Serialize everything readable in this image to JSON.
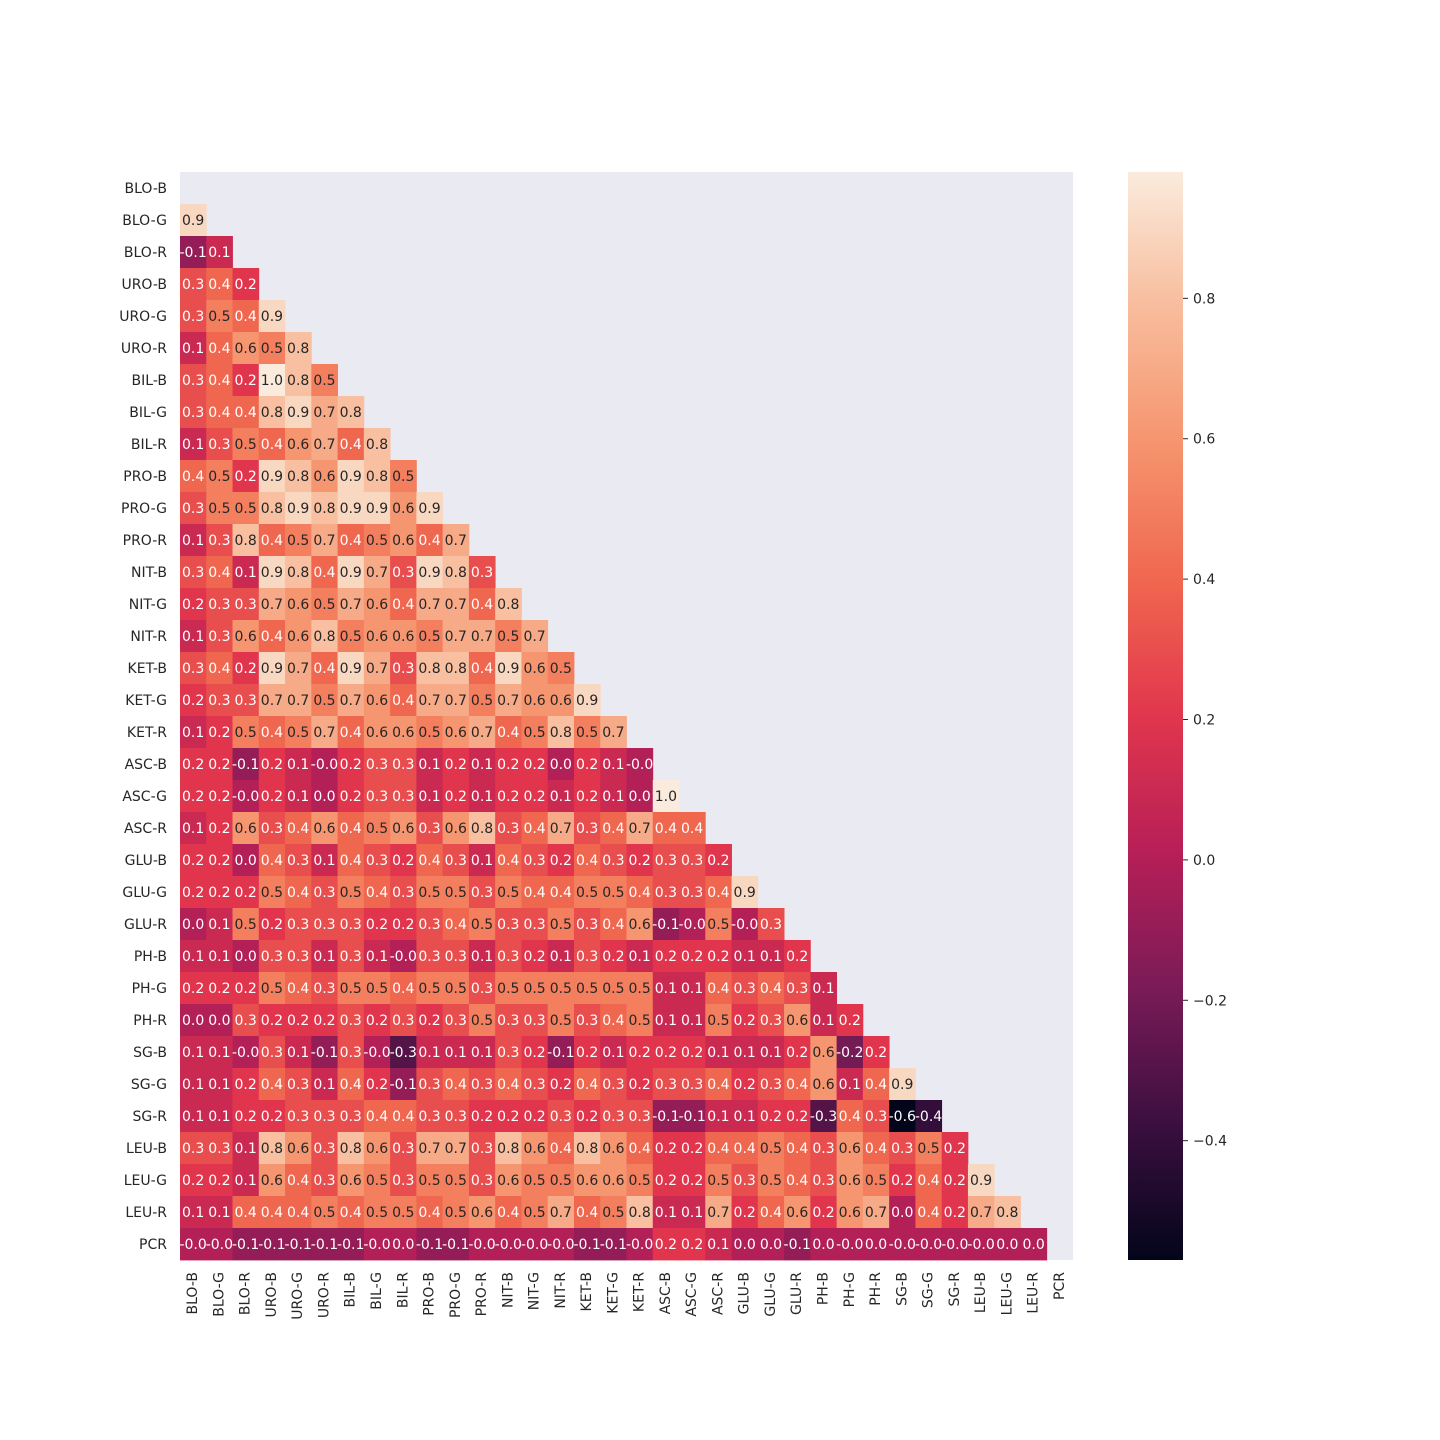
{
  "chart_data": {
    "type": "heatmap",
    "mask": "upper-triangle-including-diagonal",
    "variables": [
      "BLO-B",
      "BLO-G",
      "BLO-R",
      "URO-B",
      "URO-G",
      "URO-R",
      "BIL-B",
      "BIL-G",
      "BIL-R",
      "PRO-B",
      "PRO-G",
      "PRO-R",
      "NIT-B",
      "NIT-G",
      "NIT-R",
      "KET-B",
      "KET-G",
      "KET-R",
      "ASC-B",
      "ASC-G",
      "ASC-R",
      "GLU-B",
      "GLU-G",
      "GLU-R",
      "PH-B",
      "PH-G",
      "PH-R",
      "SG-B",
      "SG-G",
      "SG-R",
      "LEU-B",
      "LEU-G",
      "LEU-R",
      "PCR"
    ],
    "rows": [
      [],
      [
        "0.9"
      ],
      [
        "-0.1",
        "0.1"
      ],
      [
        "0.3",
        "0.4",
        "0.2"
      ],
      [
        "0.3",
        "0.5",
        "0.4",
        "0.9"
      ],
      [
        "0.1",
        "0.4",
        "0.6",
        "0.5",
        "0.8"
      ],
      [
        "0.3",
        "0.4",
        "0.2",
        "1.0",
        "0.8",
        "0.5"
      ],
      [
        "0.3",
        "0.4",
        "0.4",
        "0.8",
        "0.9",
        "0.7",
        "0.8"
      ],
      [
        "0.1",
        "0.3",
        "0.5",
        "0.4",
        "0.6",
        "0.7",
        "0.4",
        "0.8"
      ],
      [
        "0.4",
        "0.5",
        "0.2",
        "0.9",
        "0.8",
        "0.6",
        "0.9",
        "0.8",
        "0.5"
      ],
      [
        "0.3",
        "0.5",
        "0.5",
        "0.8",
        "0.9",
        "0.8",
        "0.9",
        "0.9",
        "0.6",
        "0.9"
      ],
      [
        "0.1",
        "0.3",
        "0.8",
        "0.4",
        "0.5",
        "0.7",
        "0.4",
        "0.5",
        "0.6",
        "0.4",
        "0.7"
      ],
      [
        "0.3",
        "0.4",
        "0.1",
        "0.9",
        "0.8",
        "0.4",
        "0.9",
        "0.7",
        "0.3",
        "0.9",
        "0.8",
        "0.3"
      ],
      [
        "0.2",
        "0.3",
        "0.3",
        "0.7",
        "0.6",
        "0.5",
        "0.7",
        "0.6",
        "0.4",
        "0.7",
        "0.7",
        "0.4",
        "0.8"
      ],
      [
        "0.1",
        "0.3",
        "0.6",
        "0.4",
        "0.6",
        "0.8",
        "0.5",
        "0.6",
        "0.6",
        "0.5",
        "0.7",
        "0.7",
        "0.5",
        "0.7"
      ],
      [
        "0.3",
        "0.4",
        "0.2",
        "0.9",
        "0.7",
        "0.4",
        "0.9",
        "0.7",
        "0.3",
        "0.8",
        "0.8",
        "0.4",
        "0.9",
        "0.6",
        "0.5"
      ],
      [
        "0.2",
        "0.3",
        "0.3",
        "0.7",
        "0.7",
        "0.5",
        "0.7",
        "0.6",
        "0.4",
        "0.7",
        "0.7",
        "0.5",
        "0.7",
        "0.6",
        "0.6",
        "0.9"
      ],
      [
        "0.1",
        "0.2",
        "0.5",
        "0.4",
        "0.5",
        "0.7",
        "0.4",
        "0.6",
        "0.6",
        "0.5",
        "0.6",
        "0.7",
        "0.4",
        "0.5",
        "0.8",
        "0.5",
        "0.7"
      ],
      [
        "0.2",
        "0.2",
        "-0.1",
        "0.2",
        "0.1",
        "-0.0",
        "0.2",
        "0.3",
        "0.3",
        "0.1",
        "0.2",
        "0.1",
        "0.2",
        "0.2",
        "0.0",
        "0.2",
        "0.1",
        "-0.0"
      ],
      [
        "0.2",
        "0.2",
        "-0.0",
        "0.2",
        "0.1",
        "0.0",
        "0.2",
        "0.3",
        "0.3",
        "0.1",
        "0.2",
        "0.1",
        "0.2",
        "0.2",
        "0.1",
        "0.2",
        "0.1",
        "0.0",
        "1.0"
      ],
      [
        "0.1",
        "0.2",
        "0.6",
        "0.3",
        "0.4",
        "0.6",
        "0.4",
        "0.5",
        "0.6",
        "0.3",
        "0.6",
        "0.8",
        "0.3",
        "0.4",
        "0.7",
        "0.3",
        "0.4",
        "0.7",
        "0.4",
        "0.4"
      ],
      [
        "0.2",
        "0.2",
        "0.0",
        "0.4",
        "0.3",
        "0.1",
        "0.4",
        "0.3",
        "0.2",
        "0.4",
        "0.3",
        "0.1",
        "0.4",
        "0.3",
        "0.2",
        "0.4",
        "0.3",
        "0.2",
        "0.3",
        "0.3",
        "0.2"
      ],
      [
        "0.2",
        "0.2",
        "0.2",
        "0.5",
        "0.4",
        "0.3",
        "0.5",
        "0.4",
        "0.3",
        "0.5",
        "0.5",
        "0.3",
        "0.5",
        "0.4",
        "0.4",
        "0.5",
        "0.5",
        "0.4",
        "0.3",
        "0.3",
        "0.4",
        "0.9"
      ],
      [
        "0.0",
        "0.1",
        "0.5",
        "0.2",
        "0.3",
        "0.3",
        "0.3",
        "0.2",
        "0.2",
        "0.3",
        "0.4",
        "0.5",
        "0.3",
        "0.3",
        "0.5",
        "0.3",
        "0.4",
        "0.6",
        "-0.1",
        "-0.0",
        "0.5",
        "-0.0",
        "0.3"
      ],
      [
        "0.1",
        "0.1",
        "0.0",
        "0.3",
        "0.3",
        "0.1",
        "0.3",
        "0.1",
        "-0.0",
        "0.3",
        "0.3",
        "0.1",
        "0.3",
        "0.2",
        "0.1",
        "0.3",
        "0.2",
        "0.1",
        "0.2",
        "0.2",
        "0.2",
        "0.1",
        "0.1",
        "0.2"
      ],
      [
        "0.2",
        "0.2",
        "0.2",
        "0.5",
        "0.4",
        "0.3",
        "0.5",
        "0.5",
        "0.4",
        "0.5",
        "0.5",
        "0.3",
        "0.5",
        "0.5",
        "0.5",
        "0.5",
        "0.5",
        "0.5",
        "0.1",
        "0.1",
        "0.4",
        "0.3",
        "0.4",
        "0.3",
        "0.1"
      ],
      [
        "0.0",
        "0.0",
        "0.3",
        "0.2",
        "0.2",
        "0.2",
        "0.3",
        "0.2",
        "0.3",
        "0.2",
        "0.3",
        "0.5",
        "0.3",
        "0.3",
        "0.5",
        "0.3",
        "0.4",
        "0.5",
        "0.1",
        "0.1",
        "0.5",
        "0.2",
        "0.3",
        "0.6",
        "0.1",
        "0.2"
      ],
      [
        "0.1",
        "0.1",
        "-0.0",
        "0.3",
        "0.1",
        "-0.1",
        "0.3",
        "-0.0",
        "-0.3",
        "0.1",
        "0.1",
        "0.1",
        "0.3",
        "0.2",
        "-0.1",
        "0.2",
        "0.1",
        "0.2",
        "0.2",
        "0.2",
        "0.1",
        "0.1",
        "0.1",
        "0.2",
        "0.6",
        "-0.2",
        "0.2"
      ],
      [
        "0.1",
        "0.1",
        "0.2",
        "0.4",
        "0.3",
        "0.1",
        "0.4",
        "0.2",
        "-0.1",
        "0.3",
        "0.4",
        "0.3",
        "0.4",
        "0.3",
        "0.2",
        "0.4",
        "0.3",
        "0.2",
        "0.3",
        "0.3",
        "0.4",
        "0.2",
        "0.3",
        "0.4",
        "0.6",
        "0.1",
        "0.4",
        "0.9"
      ],
      [
        "0.1",
        "0.1",
        "0.2",
        "0.2",
        "0.3",
        "0.3",
        "0.3",
        "0.4",
        "0.4",
        "0.3",
        "0.3",
        "0.2",
        "0.2",
        "0.2",
        "0.3",
        "0.2",
        "0.3",
        "0.3",
        "-0.1",
        "-0.1",
        "0.1",
        "0.1",
        "0.2",
        "0.2",
        "-0.3",
        "0.4",
        "0.3",
        "-0.6",
        "-0.4"
      ],
      [
        "0.3",
        "0.3",
        "0.1",
        "0.8",
        "0.6",
        "0.3",
        "0.8",
        "0.6",
        "0.3",
        "0.7",
        "0.7",
        "0.3",
        "0.8",
        "0.6",
        "0.4",
        "0.8",
        "0.6",
        "0.4",
        "0.2",
        "0.2",
        "0.4",
        "0.4",
        "0.5",
        "0.4",
        "0.3",
        "0.6",
        "0.4",
        "0.3",
        "0.5",
        "0.2"
      ],
      [
        "0.2",
        "0.2",
        "0.1",
        "0.6",
        "0.4",
        "0.3",
        "0.6",
        "0.5",
        "0.3",
        "0.5",
        "0.5",
        "0.3",
        "0.6",
        "0.5",
        "0.5",
        "0.6",
        "0.6",
        "0.5",
        "0.2",
        "0.2",
        "0.5",
        "0.3",
        "0.5",
        "0.4",
        "0.3",
        "0.6",
        "0.5",
        "0.2",
        "0.4",
        "0.2",
        "0.9"
      ],
      [
        "0.1",
        "0.1",
        "0.4",
        "0.4",
        "0.4",
        "0.5",
        "0.4",
        "0.5",
        "0.5",
        "0.4",
        "0.5",
        "0.6",
        "0.4",
        "0.5",
        "0.7",
        "0.4",
        "0.5",
        "0.8",
        "0.1",
        "0.1",
        "0.7",
        "0.2",
        "0.4",
        "0.6",
        "0.2",
        "0.6",
        "0.7",
        "0.0",
        "0.4",
        "0.2",
        "0.7",
        "0.8"
      ],
      [
        "-0.0",
        "-0.0",
        "-0.1",
        "-0.1",
        "-0.1",
        "-0.1",
        "-0.1",
        "-0.0",
        "0.0",
        "-0.1",
        "-0.1",
        "-0.0",
        "-0.0",
        "-0.0",
        "-0.0",
        "-0.1",
        "-0.1",
        "-0.0",
        "0.2",
        "0.2",
        "0.1",
        "0.0",
        "0.0",
        "-0.1",
        "0.0",
        "-0.0",
        "0.0",
        "-0.0",
        "-0.0",
        "-0.0",
        "-0.0",
        "0.0",
        "0.0"
      ]
    ],
    "vmin": -0.57,
    "vmax": 0.98,
    "colormap": "rocket",
    "colormap_stops": [
      "#03051a",
      "#3b0f3f",
      "#7a1b57",
      "#b71f57",
      "#e1364d",
      "#f0674f",
      "#f6946e",
      "#f8bc9c",
      "#faebdd"
    ],
    "colorbar_ticks": [
      "0.8",
      "0.6",
      "0.4",
      "0.2",
      "0.0",
      "−0.2",
      "−0.4"
    ],
    "colorbar_tick_values": [
      0.8,
      0.6,
      0.4,
      0.2,
      0.0,
      -0.2,
      -0.4
    ],
    "background_color": "#eaeaf2",
    "grid": false
  }
}
